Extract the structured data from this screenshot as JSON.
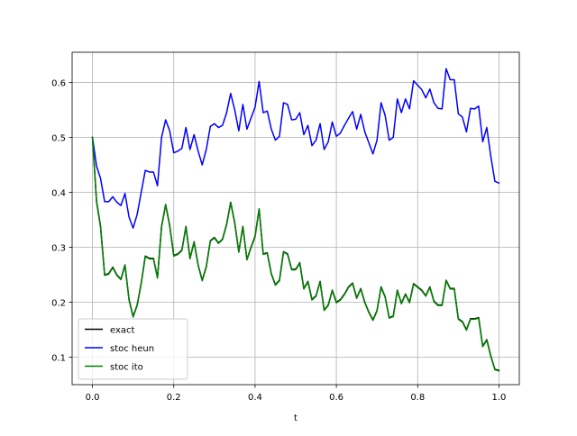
{
  "chart_data": {
    "type": "line",
    "title": "",
    "xlabel": "t",
    "ylabel": "",
    "xlim": [
      -0.05,
      1.05
    ],
    "ylim": [
      0.05,
      0.655
    ],
    "xticks": [
      0.0,
      0.2,
      0.4,
      0.6,
      0.8,
      1.0
    ],
    "xtick_labels": [
      "0.0",
      "0.2",
      "0.4",
      "0.6",
      "0.8",
      "1.0"
    ],
    "yticks": [
      0.1,
      0.2,
      0.3,
      0.4,
      0.5,
      0.6
    ],
    "ytick_labels": [
      "0.1",
      "0.2",
      "0.3",
      "0.4",
      "0.5",
      "0.6"
    ],
    "grid": true,
    "legend_position": "lower-left",
    "series": [
      {
        "name": "exact",
        "color": "#000000",
        "x": [
          0.0,
          0.01,
          0.02,
          0.03,
          0.04,
          0.05,
          0.06,
          0.07,
          0.08,
          0.09,
          0.1,
          0.11,
          0.12,
          0.13,
          0.14,
          0.15,
          0.16,
          0.17,
          0.18,
          0.19,
          0.2,
          0.21,
          0.22,
          0.23,
          0.24,
          0.25,
          0.26,
          0.27,
          0.28,
          0.29,
          0.3,
          0.31,
          0.32,
          0.33,
          0.34,
          0.35,
          0.36,
          0.37,
          0.38,
          0.39,
          0.4,
          0.41,
          0.42,
          0.43,
          0.44,
          0.45,
          0.46,
          0.47,
          0.48,
          0.49,
          0.5,
          0.51,
          0.52,
          0.53,
          0.54,
          0.55,
          0.56,
          0.57,
          0.58,
          0.59,
          0.6,
          0.61,
          0.62,
          0.63,
          0.64,
          0.65,
          0.66,
          0.67,
          0.68,
          0.69,
          0.7,
          0.71,
          0.72,
          0.73,
          0.74,
          0.75,
          0.76,
          0.77,
          0.78,
          0.79,
          0.8,
          0.81,
          0.82,
          0.83,
          0.84,
          0.85,
          0.86,
          0.87,
          0.88,
          0.89,
          0.9,
          0.91,
          0.92,
          0.93,
          0.94,
          0.95,
          0.96,
          0.97,
          0.98,
          0.99,
          1.0
        ],
        "y": [
          0.5,
          0.385,
          0.338,
          0.25,
          0.252,
          0.264,
          0.25,
          0.242,
          0.268,
          0.205,
          0.174,
          0.195,
          0.235,
          0.284,
          0.28,
          0.28,
          0.245,
          0.338,
          0.378,
          0.34,
          0.285,
          0.288,
          0.295,
          0.338,
          0.28,
          0.31,
          0.268,
          0.24,
          0.265,
          0.312,
          0.318,
          0.308,
          0.315,
          0.342,
          0.382,
          0.345,
          0.292,
          0.338,
          0.278,
          0.3,
          0.32,
          0.37,
          0.288,
          0.29,
          0.252,
          0.232,
          0.24,
          0.292,
          0.288,
          0.26,
          0.26,
          0.272,
          0.225,
          0.238,
          0.205,
          0.212,
          0.238,
          0.186,
          0.195,
          0.222,
          0.2,
          0.205,
          0.215,
          0.228,
          0.235,
          0.208,
          0.225,
          0.2,
          0.182,
          0.168,
          0.185,
          0.228,
          0.21,
          0.172,
          0.175,
          0.222,
          0.198,
          0.215,
          0.2,
          0.234,
          0.228,
          0.222,
          0.212,
          0.228,
          0.202,
          0.195,
          0.195,
          0.24,
          0.225,
          0.225,
          0.17,
          0.165,
          0.15,
          0.17,
          0.17,
          0.172,
          0.12,
          0.132,
          0.102,
          0.078,
          0.076
        ]
      },
      {
        "name": "stoc heun",
        "color": "#0000ff",
        "x": [
          0.0,
          0.01,
          0.02,
          0.03,
          0.04,
          0.05,
          0.06,
          0.07,
          0.08,
          0.09,
          0.1,
          0.11,
          0.12,
          0.13,
          0.14,
          0.15,
          0.16,
          0.17,
          0.18,
          0.19,
          0.2,
          0.21,
          0.22,
          0.23,
          0.24,
          0.25,
          0.26,
          0.27,
          0.28,
          0.29,
          0.3,
          0.31,
          0.32,
          0.33,
          0.34,
          0.35,
          0.36,
          0.37,
          0.38,
          0.39,
          0.4,
          0.41,
          0.42,
          0.43,
          0.44,
          0.45,
          0.46,
          0.47,
          0.48,
          0.49,
          0.5,
          0.51,
          0.52,
          0.53,
          0.54,
          0.55,
          0.56,
          0.57,
          0.58,
          0.59,
          0.6,
          0.61,
          0.62,
          0.63,
          0.64,
          0.65,
          0.66,
          0.67,
          0.68,
          0.69,
          0.7,
          0.71,
          0.72,
          0.73,
          0.74,
          0.75,
          0.76,
          0.77,
          0.78,
          0.79,
          0.8,
          0.81,
          0.82,
          0.83,
          0.84,
          0.85,
          0.86,
          0.87,
          0.88,
          0.89,
          0.9,
          0.91,
          0.92,
          0.93,
          0.94,
          0.95,
          0.96,
          0.97,
          0.98,
          0.99,
          1.0
        ],
        "y": [
          0.5,
          0.448,
          0.425,
          0.383,
          0.383,
          0.392,
          0.382,
          0.376,
          0.398,
          0.355,
          0.335,
          0.36,
          0.4,
          0.44,
          0.437,
          0.437,
          0.412,
          0.5,
          0.532,
          0.512,
          0.472,
          0.475,
          0.48,
          0.518,
          0.478,
          0.505,
          0.475,
          0.45,
          0.478,
          0.52,
          0.525,
          0.518,
          0.522,
          0.545,
          0.58,
          0.55,
          0.512,
          0.56,
          0.515,
          0.535,
          0.555,
          0.602,
          0.545,
          0.548,
          0.515,
          0.495,
          0.502,
          0.563,
          0.56,
          0.532,
          0.533,
          0.545,
          0.505,
          0.522,
          0.485,
          0.495,
          0.525,
          0.478,
          0.492,
          0.528,
          0.502,
          0.508,
          0.522,
          0.535,
          0.547,
          0.515,
          0.542,
          0.51,
          0.49,
          0.47,
          0.495,
          0.563,
          0.54,
          0.495,
          0.5,
          0.57,
          0.545,
          0.57,
          0.552,
          0.603,
          0.595,
          0.587,
          0.572,
          0.588,
          0.563,
          0.553,
          0.552,
          0.625,
          0.605,
          0.605,
          0.543,
          0.537,
          0.51,
          0.553,
          0.552,
          0.557,
          0.492,
          0.518,
          0.465,
          0.42,
          0.417
        ]
      },
      {
        "name": "stoc ito",
        "color": "#008000",
        "x": [
          0.0,
          0.01,
          0.02,
          0.03,
          0.04,
          0.05,
          0.06,
          0.07,
          0.08,
          0.09,
          0.1,
          0.11,
          0.12,
          0.13,
          0.14,
          0.15,
          0.16,
          0.17,
          0.18,
          0.19,
          0.2,
          0.21,
          0.22,
          0.23,
          0.24,
          0.25,
          0.26,
          0.27,
          0.28,
          0.29,
          0.3,
          0.31,
          0.32,
          0.33,
          0.34,
          0.35,
          0.36,
          0.37,
          0.38,
          0.39,
          0.4,
          0.41,
          0.42,
          0.43,
          0.44,
          0.45,
          0.46,
          0.47,
          0.48,
          0.49,
          0.5,
          0.51,
          0.52,
          0.53,
          0.54,
          0.55,
          0.56,
          0.57,
          0.58,
          0.59,
          0.6,
          0.61,
          0.62,
          0.63,
          0.64,
          0.65,
          0.66,
          0.67,
          0.68,
          0.69,
          0.7,
          0.71,
          0.72,
          0.73,
          0.74,
          0.75,
          0.76,
          0.77,
          0.78,
          0.79,
          0.8,
          0.81,
          0.82,
          0.83,
          0.84,
          0.85,
          0.86,
          0.87,
          0.88,
          0.89,
          0.9,
          0.91,
          0.92,
          0.93,
          0.94,
          0.95,
          0.96,
          0.97,
          0.98,
          0.99,
          1.0
        ],
        "y": [
          0.5,
          0.383,
          0.336,
          0.249,
          0.251,
          0.263,
          0.249,
          0.241,
          0.267,
          0.204,
          0.173,
          0.194,
          0.234,
          0.283,
          0.279,
          0.279,
          0.244,
          0.337,
          0.377,
          0.339,
          0.284,
          0.287,
          0.294,
          0.337,
          0.279,
          0.309,
          0.267,
          0.239,
          0.264,
          0.311,
          0.317,
          0.307,
          0.314,
          0.341,
          0.381,
          0.344,
          0.291,
          0.337,
          0.277,
          0.299,
          0.319,
          0.369,
          0.287,
          0.289,
          0.251,
          0.231,
          0.239,
          0.291,
          0.287,
          0.259,
          0.259,
          0.271,
          0.224,
          0.237,
          0.204,
          0.211,
          0.237,
          0.185,
          0.194,
          0.221,
          0.199,
          0.204,
          0.214,
          0.227,
          0.234,
          0.207,
          0.224,
          0.199,
          0.181,
          0.167,
          0.184,
          0.227,
          0.209,
          0.171,
          0.174,
          0.221,
          0.197,
          0.214,
          0.199,
          0.233,
          0.227,
          0.221,
          0.211,
          0.227,
          0.201,
          0.194,
          0.194,
          0.239,
          0.224,
          0.224,
          0.169,
          0.164,
          0.149,
          0.169,
          0.169,
          0.171,
          0.119,
          0.131,
          0.101,
          0.077,
          0.075
        ]
      }
    ]
  }
}
